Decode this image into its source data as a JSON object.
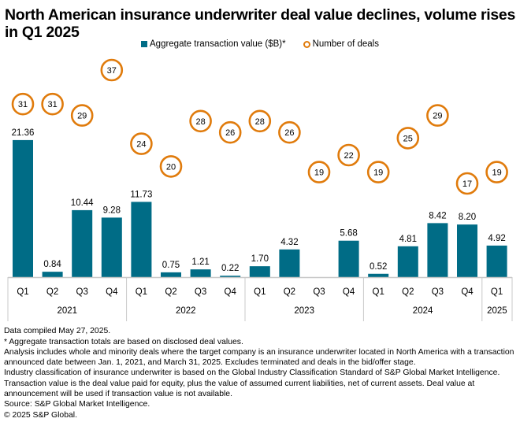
{
  "title": "North American insurance underwriter deal value declines, volume rises in Q1 2025",
  "legend": {
    "bar_label": "Aggregate transaction value ($B)*",
    "dot_label": "Number of deals"
  },
  "colors": {
    "bar": "#006c86",
    "dot": "#e07b0c",
    "axis": "#c8c8c8"
  },
  "chart_data": {
    "type": "bar",
    "title": "North American insurance underwriter deal value declines, volume rises in Q1 2025",
    "xlabel": "",
    "ylabel": "",
    "categories": [
      "Q1",
      "Q2",
      "Q3",
      "Q4",
      "Q1",
      "Q2",
      "Q3",
      "Q4",
      "Q1",
      "Q2",
      "Q3",
      "Q4",
      "Q1",
      "Q2",
      "Q3",
      "Q4",
      "Q1"
    ],
    "years": [
      {
        "label": "2021",
        "span": 4
      },
      {
        "label": "2022",
        "span": 4
      },
      {
        "label": "2023",
        "span": 4
      },
      {
        "label": "2024",
        "span": 4
      },
      {
        "label": "2025",
        "span": 1
      }
    ],
    "series": [
      {
        "name": "Aggregate transaction value ($B)*",
        "type": "bar",
        "values": [
          21.36,
          0.84,
          10.44,
          9.28,
          11.73,
          0.75,
          1.21,
          0.22,
          1.7,
          4.32,
          null,
          5.68,
          0.52,
          4.81,
          8.42,
          8.2,
          4.92
        ],
        "labels": [
          "21.36",
          "0.84",
          "10.44",
          "9.28",
          "11.73",
          "0.75",
          "1.21",
          "0.22",
          "1.70",
          "4.32",
          "",
          "5.68",
          "0.52",
          "4.81",
          "8.42",
          "8.20",
          "4.92"
        ]
      },
      {
        "name": "Number of deals",
        "type": "scatter",
        "values": [
          31,
          31,
          29,
          37,
          24,
          20,
          28,
          26,
          28,
          26,
          19,
          22,
          19,
          25,
          29,
          17,
          19
        ]
      }
    ],
    "ylim_bar": [
      0,
      22
    ],
    "ylim_deals": [
      17,
      37
    ],
    "grid": false,
    "legend_position": "top-center"
  },
  "notes": [
    "Data compiled May 27, 2025.",
    "* Aggregate transaction totals are based on disclosed deal values.",
    "Analysis includes whole and minority deals where the target company is an insurance underwriter located in North America with a transaction announced date between Jan. 1, 2021, and March 31, 2025. Excludes terminated and deals in the bid/offer stage.",
    "Industry classification of insurance underwriter is based on the Global Industry Classification Standard of S&P Global Market Intelligence.",
    "Transaction value is the deal value paid for equity, plus the value of assumed current liabilities, net of current assets. Deal value at announcement will be used if transaction value is not available.",
    "Source: S&P Global Market Intelligence.",
    "© 2025 S&P Global."
  ]
}
